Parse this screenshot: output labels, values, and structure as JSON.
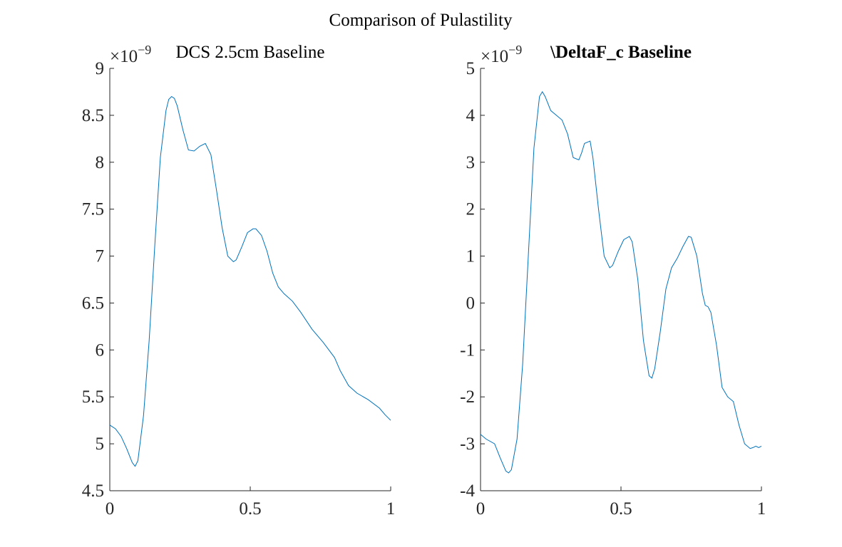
{
  "figure": {
    "supertitle": "Comparison of Pulastility"
  },
  "colors": {
    "series": "#0072BD",
    "axis": "#262626",
    "text": "#000000"
  },
  "chart_data": [
    {
      "type": "line",
      "title": "DCS 2.5cm Baseline",
      "title_bold": false,
      "xlabel": "",
      "ylabel": "",
      "xlim": [
        0,
        1
      ],
      "ylim": [
        4.5,
        9
      ],
      "y_exponent": "-9",
      "x_ticks": [
        0,
        0.5,
        1
      ],
      "x_tick_labels": [
        "0",
        "0.5",
        "1"
      ],
      "y_ticks": [
        4.5,
        5,
        5.5,
        6,
        6.5,
        7,
        7.5,
        8,
        8.5,
        9
      ],
      "y_tick_labels": [
        "4.5",
        "5",
        "5.5",
        "6",
        "6.5",
        "7",
        "7.5",
        "8",
        "8.5",
        "9"
      ],
      "grid": false,
      "series": [
        {
          "x": [
            0,
            0.02,
            0.04,
            0.06,
            0.08,
            0.09,
            0.1,
            0.12,
            0.14,
            0.16,
            0.18,
            0.2,
            0.21,
            0.22,
            0.23,
            0.24,
            0.26,
            0.28,
            0.3,
            0.32,
            0.34,
            0.36,
            0.38,
            0.4,
            0.42,
            0.44,
            0.45,
            0.47,
            0.49,
            0.51,
            0.52,
            0.54,
            0.56,
            0.58,
            0.6,
            0.62,
            0.65,
            0.68,
            0.72,
            0.76,
            0.8,
            0.82,
            0.85,
            0.88,
            0.92,
            0.96,
            0.98,
            1.0
          ],
          "y": [
            5.2,
            5.16,
            5.08,
            4.95,
            4.8,
            4.76,
            4.82,
            5.3,
            6.1,
            7.1,
            8.05,
            8.55,
            8.67,
            8.7,
            8.68,
            8.6,
            8.35,
            8.13,
            8.12,
            8.17,
            8.2,
            8.08,
            7.7,
            7.3,
            7.0,
            6.94,
            6.96,
            7.1,
            7.25,
            7.29,
            7.29,
            7.22,
            7.05,
            6.82,
            6.67,
            6.6,
            6.52,
            6.4,
            6.22,
            6.08,
            5.92,
            5.78,
            5.62,
            5.54,
            5.47,
            5.38,
            5.31,
            5.25
          ]
        }
      ]
    },
    {
      "type": "line",
      "title": "\\DeltaF_c Baseline",
      "title_bold": true,
      "xlabel": "",
      "ylabel": "",
      "xlim": [
        0,
        1
      ],
      "ylim": [
        -4,
        5
      ],
      "y_exponent": "-9",
      "x_ticks": [
        0,
        0.5,
        1
      ],
      "x_tick_labels": [
        "0",
        "0.5",
        "1"
      ],
      "y_ticks": [
        -4,
        -3,
        -2,
        -1,
        0,
        1,
        2,
        3,
        4,
        5
      ],
      "y_tick_labels": [
        "-4",
        "-3",
        "-2",
        "-1",
        "0",
        "1",
        "2",
        "3",
        "4",
        "5"
      ],
      "grid": false,
      "series": [
        {
          "x": [
            0,
            0.02,
            0.05,
            0.07,
            0.09,
            0.1,
            0.11,
            0.13,
            0.15,
            0.17,
            0.19,
            0.21,
            0.22,
            0.23,
            0.25,
            0.27,
            0.29,
            0.31,
            0.33,
            0.35,
            0.36,
            0.37,
            0.39,
            0.4,
            0.42,
            0.44,
            0.46,
            0.47,
            0.49,
            0.51,
            0.53,
            0.54,
            0.56,
            0.58,
            0.6,
            0.61,
            0.62,
            0.64,
            0.66,
            0.68,
            0.7,
            0.72,
            0.74,
            0.75,
            0.77,
            0.79,
            0.8,
            0.81,
            0.82,
            0.84,
            0.86,
            0.88,
            0.9,
            0.92,
            0.94,
            0.96,
            0.97,
            0.98,
            0.99,
            1.0
          ],
          "y": [
            -2.8,
            -2.9,
            -3.0,
            -3.3,
            -3.58,
            -3.62,
            -3.55,
            -2.9,
            -1.3,
            1.0,
            3.3,
            4.4,
            4.5,
            4.4,
            4.1,
            4.0,
            3.9,
            3.6,
            3.1,
            3.05,
            3.2,
            3.4,
            3.45,
            3.1,
            2.0,
            1.0,
            0.75,
            0.8,
            1.1,
            1.35,
            1.42,
            1.3,
            0.5,
            -0.8,
            -1.55,
            -1.6,
            -1.4,
            -0.6,
            0.3,
            0.75,
            0.95,
            1.2,
            1.42,
            1.4,
            1.0,
            0.2,
            -0.05,
            -0.08,
            -0.2,
            -0.9,
            -1.8,
            -2.0,
            -2.1,
            -2.6,
            -3.0,
            -3.1,
            -3.08,
            -3.05,
            -3.08,
            -3.05
          ]
        }
      ]
    }
  ]
}
